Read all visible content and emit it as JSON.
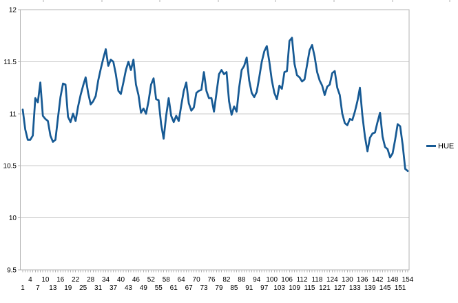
{
  "chart_data": {
    "type": "line",
    "title": "",
    "xlabel": "",
    "ylabel": "",
    "x_range": [
      1,
      154
    ],
    "ylim": [
      9.5,
      12
    ],
    "y_ticks": [
      12,
      11.5,
      11,
      10.5,
      10,
      9.5
    ],
    "x_tick_labels": [
      "1",
      "4",
      "7",
      "10",
      "13",
      "16",
      "19",
      "22",
      "25",
      "28",
      "31",
      "34",
      "37",
      "40",
      "43",
      "46",
      "49",
      "52",
      "55",
      "58",
      "61",
      "64",
      "67",
      "70",
      "73",
      "76",
      "79",
      "82",
      "85",
      "88",
      "91",
      "94",
      "97",
      "100",
      "103",
      "106",
      "109",
      "112",
      "115",
      "118",
      "121",
      "124",
      "127",
      "130",
      "133",
      "136",
      "139",
      "142",
      "145",
      "148",
      "151",
      "154"
    ],
    "grid": "horizontal",
    "legend_position": "right",
    "series": [
      {
        "name": "HUE",
        "color": "#175a94",
        "values": [
          11.04,
          10.85,
          10.75,
          10.75,
          10.79,
          11.15,
          11.11,
          11.3,
          10.98,
          10.95,
          10.93,
          10.79,
          10.73,
          10.75,
          10.96,
          11.16,
          11.29,
          11.28,
          10.97,
          10.92,
          11.0,
          10.93,
          11.07,
          11.18,
          11.27,
          11.35,
          11.2,
          11.09,
          11.12,
          11.17,
          11.32,
          11.43,
          11.53,
          11.62,
          11.46,
          11.52,
          11.5,
          11.38,
          11.22,
          11.19,
          11.3,
          11.42,
          11.5,
          11.42,
          11.52,
          11.28,
          11.18,
          11.01,
          11.05,
          11.0,
          11.12,
          11.28,
          11.34,
          11.14,
          11.13,
          10.9,
          10.76,
          10.98,
          11.15,
          10.98,
          10.92,
          10.98,
          10.93,
          11.08,
          11.22,
          11.3,
          11.1,
          11.03,
          11.06,
          11.2,
          11.22,
          11.23,
          11.4,
          11.22,
          11.15,
          11.15,
          11.02,
          11.2,
          11.38,
          11.42,
          11.38,
          11.4,
          11.12,
          10.99,
          11.07,
          11.02,
          11.25,
          11.42,
          11.46,
          11.54,
          11.32,
          11.2,
          11.16,
          11.21,
          11.35,
          11.5,
          11.6,
          11.65,
          11.5,
          11.32,
          11.2,
          11.14,
          11.27,
          11.24,
          11.4,
          11.41,
          11.7,
          11.73,
          11.48,
          11.37,
          11.35,
          11.31,
          11.33,
          11.47,
          11.61,
          11.66,
          11.55,
          11.4,
          11.32,
          11.27,
          11.18,
          11.26,
          11.28,
          11.39,
          11.41,
          11.25,
          11.18,
          11.0,
          10.91,
          10.89,
          10.95,
          10.94,
          11.02,
          11.12,
          11.25,
          10.98,
          10.78,
          10.64,
          10.77,
          10.81,
          10.82,
          10.92,
          11.01,
          10.78,
          10.68,
          10.66,
          10.58,
          10.62,
          10.75,
          10.9,
          10.88,
          10.7,
          10.47,
          10.45
        ]
      }
    ]
  },
  "colors": {
    "line": "#175a94",
    "grid": "#c9c9c9",
    "axis": "#b3b3b3",
    "text": "#000000",
    "background": "#ffffff"
  }
}
